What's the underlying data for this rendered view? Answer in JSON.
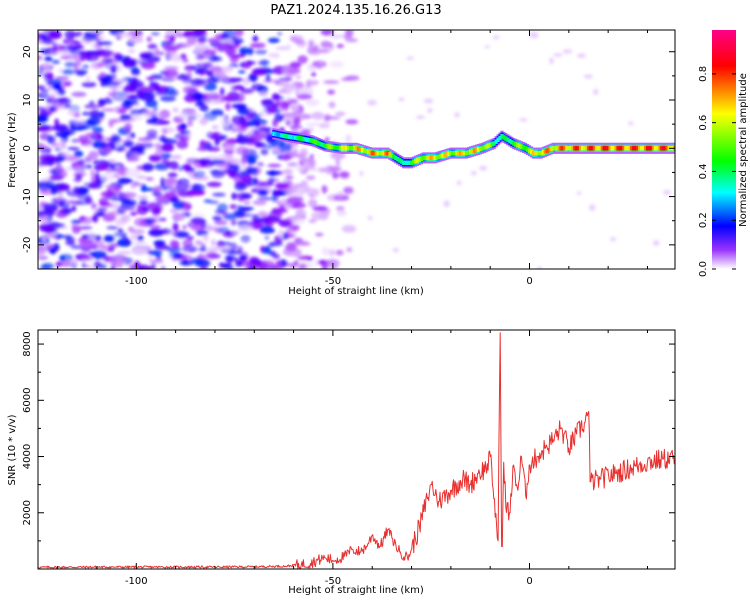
{
  "title": "PAZ1.2024.135.16.26.G13",
  "chart_data": [
    {
      "type": "heatmap",
      "xlabel": "Height of straight line (km)",
      "ylabel": "Frequency (Hz)",
      "xlim": [
        -125,
        37
      ],
      "ylim": [
        -25,
        24.5
      ],
      "xticks": [
        -100,
        -50,
        0
      ],
      "yticks": [
        20,
        10,
        0,
        -10,
        -20
      ],
      "grid": false,
      "colorscale": [
        "#ffffff",
        "#8800ff",
        "#0000ff",
        "#00ffff",
        "#00ff00",
        "#ffff00",
        "#ff0000",
        "#ff0088"
      ],
      "ridge": {
        "x": [
          -65,
          -62,
          -58,
          -55,
          -52,
          -48,
          -44,
          -40,
          -36,
          -34,
          -32,
          -30,
          -27,
          -24,
          -20,
          -16,
          -12,
          -9,
          -7,
          -4,
          -1,
          1,
          3,
          6,
          10,
          14,
          18,
          22,
          26,
          30,
          34,
          37
        ],
        "frequency_hz": [
          3,
          2.5,
          2,
          1.5,
          0.5,
          0,
          0,
          -1,
          -1,
          -2,
          -3,
          -3,
          -2,
          -2,
          -1,
          -1,
          0,
          1,
          2.5,
          1,
          0,
          -1,
          -1,
          0,
          0,
          0,
          0,
          0,
          0,
          0,
          0,
          0
        ],
        "amplitude": [
          0.35,
          0.4,
          0.45,
          0.5,
          0.55,
          0.65,
          0.75,
          0.8,
          0.8,
          0.55,
          0.35,
          0.55,
          0.7,
          0.75,
          0.7,
          0.75,
          0.75,
          0.5,
          0.4,
          0.55,
          0.65,
          0.7,
          0.8,
          0.8,
          0.85,
          0.88,
          0.9,
          0.9,
          0.9,
          0.9,
          0.9,
          0.88
        ]
      },
      "noise_region_x": [
        -125,
        -55
      ],
      "colorbar": {
        "label": "Normalized spectral amplitude",
        "range": [
          0,
          0.98
        ],
        "ticks": [
          "0.0",
          "0.2",
          "0.4",
          "0.6",
          "0.8"
        ]
      }
    },
    {
      "type": "line",
      "xlabel": "Height of straight line (km)",
      "ylabel": "SNR (10 * v/v)",
      "xlim": [
        -125,
        37
      ],
      "ylim": [
        0,
        8500
      ],
      "xticks": [
        -100,
        -50,
        0
      ],
      "yticks": [
        2000,
        4000,
        6000,
        8000
      ],
      "grid": false,
      "color": "#e8302f",
      "series": [
        {
          "x": [
            -125,
            -110,
            -95,
            -80,
            -70,
            -62,
            -58,
            -55,
            -52,
            -50,
            -47,
            -45,
            -43,
            -41,
            -40,
            -38,
            -36,
            -35,
            -33,
            -31,
            -30,
            -28,
            -26,
            -25,
            -23,
            -20,
            -17,
            -15,
            -13,
            -11,
            -10,
            -9,
            -8,
            -7.5,
            -7,
            -6.5,
            -6,
            -5,
            -4,
            -3,
            -2,
            -1,
            0,
            2,
            4,
            6,
            8,
            10,
            12,
            14,
            15,
            15.5,
            18,
            22,
            26,
            30,
            34,
            37
          ],
          "values": [
            60,
            70,
            70,
            70,
            80,
            100,
            150,
            250,
            400,
            300,
            450,
            700,
            600,
            900,
            1200,
            800,
            1400,
            1100,
            600,
            400,
            700,
            1500,
            2500,
            3000,
            2400,
            2800,
            3200,
            3000,
            3400,
            3600,
            4000,
            2500,
            1000,
            8400,
            800,
            3800,
            2200,
            2000,
            3700,
            2800,
            4000,
            2600,
            3700,
            4000,
            4300,
            4600,
            5000,
            4300,
            4800,
            5200,
            5600,
            3100,
            3200,
            3400,
            3600,
            3800,
            3900,
            3950
          ]
        }
      ]
    }
  ]
}
